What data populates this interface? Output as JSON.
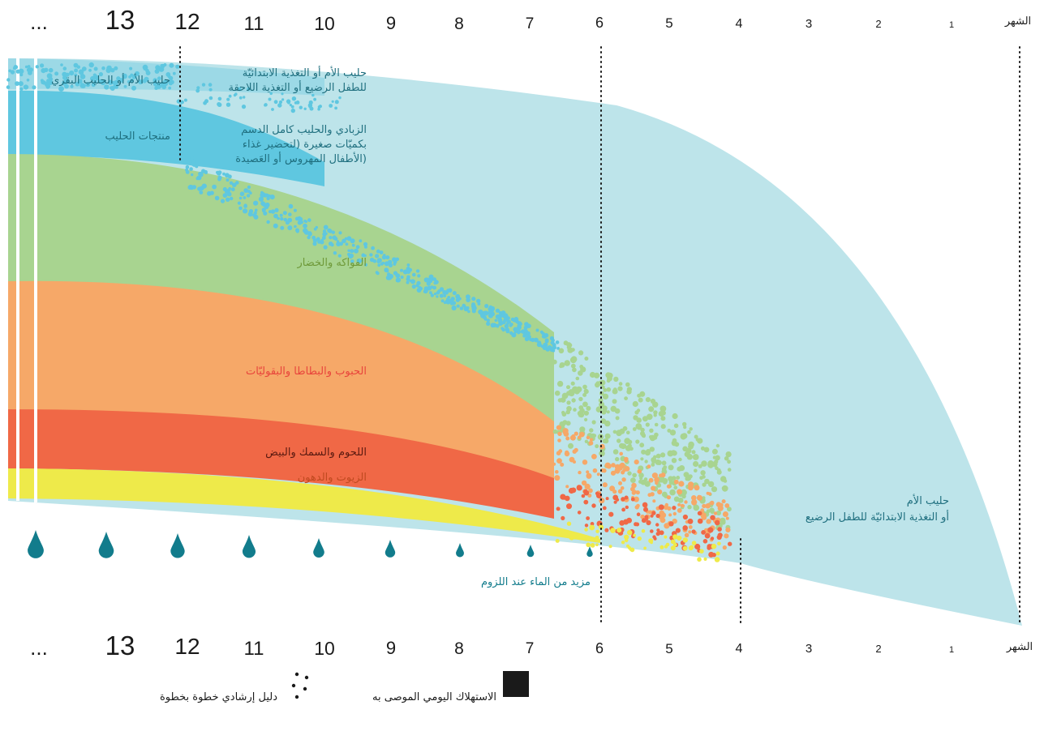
{
  "axis": {
    "title": "الشهر",
    "months": [
      "1",
      "2",
      "3",
      "4",
      "5",
      "6",
      "7",
      "8",
      "9",
      "10",
      "11",
      "12",
      "13"
    ],
    "ellipsis": "..."
  },
  "bands": {
    "milk_top": {
      "line1": "حليب الأم أو الحليب البقري",
      "color": "#5fc7e0"
    },
    "milk_transition": {
      "line1": "حليب الأم أو التغذية الابتدائيّة",
      "line2": "للطفل الرضيع أو التغذية اللاحقة"
    },
    "dairy": {
      "label": "منتجات الحليب",
      "color": "#5fc7e0"
    },
    "dairy_transition": {
      "line1": "الزبادي والحليب كامل الدسم",
      "line2": "بكميّات صغيرة (لتحضير غذاء",
      "line3": "الأطفال المهروس أو العَصيدة)"
    },
    "fruits_veg": {
      "label": "الفواكه والخضار",
      "color": "#a8d490",
      "text_color": "#6f9a3a"
    },
    "grains": {
      "label": "الحبوب والبطاطا والبقوليّات",
      "color": "#f6a868",
      "text_color": "#e8453c"
    },
    "meat": {
      "label": "اللحوم والسمك والبيض",
      "color": "#f06846",
      "text_color": "#5a1a10"
    },
    "oils": {
      "label": "الزيوت والدهون",
      "color": "#eeea4a",
      "text_color": "#c04a20"
    },
    "base_milk": {
      "line1": "حليب الأم",
      "line2": "أو التغذية الابتدائيّة للطفل الرضيع",
      "color": "#bde4ea",
      "text_color": "#1f6f7f"
    }
  },
  "water": {
    "label": "مزيد من الماء عند اللزوم",
    "color": "#127c8c"
  },
  "legend": {
    "recommended": "الاستهلاك اليومي الموصى به",
    "stepwise": "دليل إرشادي خطوة بخطوة"
  },
  "colors": {
    "text_teal": "#1f6f7f",
    "dark": "#1a1a1a"
  }
}
